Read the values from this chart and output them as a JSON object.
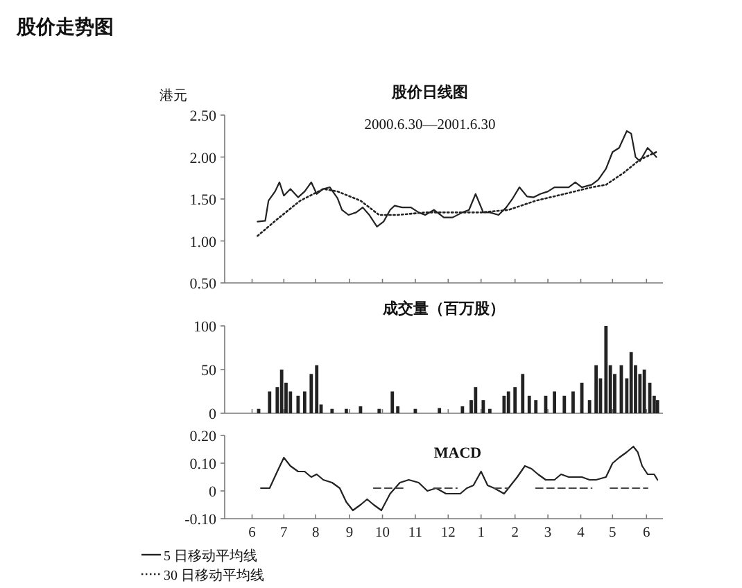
{
  "chart_data": [
    {
      "type": "line",
      "title": "股价日线图",
      "subtitle": "2000.6.30—2001.6.30",
      "ylabel": "港元",
      "annotations": [
        "股价走势图"
      ],
      "legend": "bottom left",
      "tick_labels": "y",
      "xlim": [
        "2000-05-31",
        "2001-07-05"
      ],
      "ylim": [
        0.5,
        2.5
      ],
      "xticks": [
        {
          "value": "2000-06-25",
          "label": null
        },
        {
          "value": "2000-07-24",
          "label": null
        },
        {
          "value": "2000-08-22",
          "label": null
        },
        {
          "value": "2000-09-22",
          "label": null
        },
        {
          "value": "2000-10-22",
          "label": null
        },
        {
          "value": "2000-11-21",
          "label": null
        },
        {
          "value": "2000-12-21",
          "label": null
        },
        {
          "value": "2001-01-20",
          "label": null
        },
        {
          "value": "2001-02-20",
          "label": null
        },
        {
          "value": "2001-03-22",
          "label": null
        },
        {
          "value": "2001-04-21",
          "label": null
        },
        {
          "value": "2001-05-20",
          "label": null
        },
        {
          "value": "2001-06-20",
          "label": null
        }
      ],
      "yticks": [
        {
          "value": 0.5,
          "label": "0.50"
        },
        {
          "value": 1.0,
          "label": "1.00"
        },
        {
          "value": 1.5,
          "label": "1.50"
        },
        {
          "value": 2.0,
          "label": "2.00"
        },
        {
          "value": 2.5,
          "label": "2.50"
        }
      ],
      "series": [
        {
          "name": "5 日移动平均线",
          "color": "#222222",
          "line_style": "solid",
          "x": [
            "2000-06-30",
            "2000-07-07",
            "2000-07-10",
            "2000-07-16",
            "2000-07-20",
            "2000-07-24",
            "2000-07-30",
            "2000-08-06",
            "2000-08-12",
            "2000-08-18",
            "2000-08-23",
            "2000-08-29",
            "2000-09-04",
            "2000-09-11",
            "2000-09-15",
            "2000-09-21",
            "2000-09-28",
            "2000-10-04",
            "2000-10-10",
            "2000-10-17",
            "2000-10-23",
            "2000-10-29",
            "2000-11-02",
            "2000-11-09",
            "2000-11-17",
            "2000-11-24",
            "2000-11-30",
            "2000-12-08",
            "2000-12-17",
            "2000-12-25",
            "2001-01-03",
            "2001-01-09",
            "2001-01-15",
            "2001-01-22",
            "2001-01-28",
            "2001-02-05",
            "2001-02-12",
            "2001-02-18",
            "2001-02-24",
            "2001-03-03",
            "2001-03-09",
            "2001-03-15",
            "2001-03-22",
            "2001-03-28",
            "2001-04-03",
            "2001-04-10",
            "2001-04-16",
            "2001-04-22",
            "2001-05-01",
            "2001-05-07",
            "2001-05-14",
            "2001-05-20",
            "2001-05-26",
            "2001-06-02",
            "2001-06-06",
            "2001-06-10",
            "2001-06-14",
            "2001-06-21",
            "2001-06-27",
            "2001-06-29"
          ],
          "values": [
            1.23,
            1.24,
            1.48,
            1.59,
            1.7,
            1.54,
            1.62,
            1.52,
            1.59,
            1.7,
            1.56,
            1.62,
            1.64,
            1.51,
            1.37,
            1.31,
            1.34,
            1.4,
            1.31,
            1.17,
            1.23,
            1.37,
            1.42,
            1.4,
            1.4,
            1.34,
            1.31,
            1.37,
            1.28,
            1.28,
            1.34,
            1.37,
            1.56,
            1.34,
            1.34,
            1.31,
            1.4,
            1.51,
            1.64,
            1.53,
            1.52,
            1.56,
            1.59,
            1.64,
            1.64,
            1.64,
            1.7,
            1.64,
            1.67,
            1.73,
            1.86,
            2.06,
            2.11,
            2.31,
            2.28,
            2.0,
            1.95,
            2.11,
            2.03,
            2.0
          ]
        },
        {
          "name": "30 日移动平均线",
          "color": "#222222",
          "line_style": "dotted",
          "x": [
            "2000-06-30",
            "2000-07-18",
            "2000-08-08",
            "2000-08-29",
            "2000-09-11",
            "2000-10-02",
            "2000-10-19",
            "2000-11-05",
            "2000-11-30",
            "2000-12-25",
            "2001-01-20",
            "2001-02-14",
            "2001-03-11",
            "2001-04-06",
            "2001-05-01",
            "2001-05-14",
            "2001-05-30",
            "2001-06-14",
            "2001-06-29"
          ],
          "values": [
            1.06,
            1.26,
            1.48,
            1.62,
            1.59,
            1.48,
            1.31,
            1.31,
            1.34,
            1.34,
            1.34,
            1.37,
            1.48,
            1.56,
            1.64,
            1.67,
            1.81,
            1.97,
            2.06
          ]
        }
      ]
    },
    {
      "type": "bar",
      "title": "成交量（百万股）",
      "tick_labels": "y",
      "xlim": [
        "2000-05-31",
        "2001-07-05"
      ],
      "ylim": [
        0,
        100
      ],
      "yticks": [
        0,
        50,
        100
      ],
      "xticks": [
        {
          "value": "2000-06-25",
          "label": null
        },
        {
          "value": "2000-07-24",
          "label": null
        },
        {
          "value": "2000-08-22",
          "label": null
        },
        {
          "value": "2000-09-22",
          "label": null
        },
        {
          "value": "2000-10-22",
          "label": null
        },
        {
          "value": "2000-11-21",
          "label": null
        },
        {
          "value": "2000-12-21",
          "label": null
        },
        {
          "value": "2001-01-20",
          "label": null
        },
        {
          "value": "2001-02-20",
          "label": null
        },
        {
          "value": "2001-03-22",
          "label": null
        },
        {
          "value": "2001-04-21",
          "label": null
        },
        {
          "value": "2001-05-20",
          "label": null
        },
        {
          "value": "2001-06-20",
          "label": null
        }
      ],
      "series": [
        {
          "color": "#222222",
          "x": [
            "2000-07-01",
            "2000-07-11",
            "2000-07-18",
            "2000-07-22",
            "2000-07-26",
            "2000-07-30",
            "2000-08-06",
            "2000-08-12",
            "2000-08-18",
            "2000-08-23",
            "2000-08-27",
            "2000-09-06",
            "2000-09-19",
            "2000-10-02",
            "2000-10-19",
            "2000-10-31",
            "2000-11-05",
            "2000-11-21",
            "2000-12-13",
            "2001-01-03",
            "2001-01-11",
            "2001-01-15",
            "2001-01-22",
            "2001-01-28",
            "2001-02-10",
            "2001-02-14",
            "2001-02-20",
            "2001-02-27",
            "2001-03-05",
            "2001-03-11",
            "2001-03-20",
            "2001-03-28",
            "2001-04-06",
            "2001-04-14",
            "2001-04-22",
            "2001-04-29",
            "2001-05-05",
            "2001-05-09",
            "2001-05-14",
            "2001-05-18",
            "2001-05-22",
            "2001-05-28",
            "2001-06-02",
            "2001-06-06",
            "2001-06-10",
            "2001-06-14",
            "2001-06-18",
            "2001-06-23",
            "2001-06-27",
            "2001-06-30"
          ],
          "values": [
            5,
            25,
            30,
            50,
            35,
            25,
            20,
            25,
            45,
            55,
            10,
            5,
            5,
            8,
            5,
            25,
            8,
            5,
            6,
            8,
            15,
            30,
            15,
            5,
            20,
            25,
            30,
            45,
            20,
            15,
            20,
            25,
            20,
            25,
            35,
            15,
            55,
            40,
            100,
            55,
            45,
            55,
            40,
            70,
            55,
            45,
            50,
            35,
            20,
            15
          ]
        }
      ]
    },
    {
      "type": "line",
      "title": "MACD",
      "xlim": [
        "2000-05-31",
        "2001-07-05"
      ],
      "ylim": [
        -0.1,
        0.2
      ],
      "yticks": [
        {
          "value": -0.1,
          "label": "-0.10"
        },
        0,
        {
          "value": 0.1,
          "label": "0.10"
        },
        {
          "value": 0.2,
          "label": "0.20"
        }
      ],
      "xticks": [
        {
          "value": "2000-06-25",
          "label": "6"
        },
        {
          "value": "2000-07-24",
          "label": "7"
        },
        {
          "value": "2000-08-22",
          "label": "8"
        },
        {
          "value": "2000-09-22",
          "label": "9"
        },
        {
          "value": "2000-10-22",
          "label": "10"
        },
        {
          "value": "2000-11-21",
          "label": "11"
        },
        {
          "value": "2000-12-21",
          "label": "12"
        },
        {
          "value": "2001-01-20",
          "label": "1"
        },
        {
          "value": "2001-02-20",
          "label": "2"
        },
        {
          "value": "2001-03-22",
          "label": "3"
        },
        {
          "value": "2001-04-21",
          "label": "4"
        },
        {
          "value": "2001-05-20",
          "label": "5"
        },
        {
          "value": "2001-06-20",
          "label": "6"
        }
      ],
      "series": [
        {
          "color": "#222222",
          "line_style": "solid",
          "x": [
            "2000-07-03",
            "2000-07-11",
            "2000-07-18",
            "2000-07-24",
            "2000-07-30",
            "2000-08-06",
            "2000-08-12",
            "2000-08-18",
            "2000-08-23",
            "2000-08-29",
            "2000-09-06",
            "2000-09-13",
            "2000-09-19",
            "2000-09-25",
            "2000-10-02",
            "2000-10-08",
            "2000-10-14",
            "2000-10-21",
            "2000-10-29",
            "2000-11-07",
            "2000-11-15",
            "2000-11-24",
            "2000-12-02",
            "2000-12-10",
            "2000-12-19",
            "2000-12-25",
            "2001-01-01",
            "2001-01-07",
            "2001-01-13",
            "2001-01-20",
            "2001-01-26",
            "2001-02-01",
            "2001-02-10",
            "2001-02-16",
            "2001-02-22",
            "2001-03-01",
            "2001-03-07",
            "2001-03-13",
            "2001-03-20",
            "2001-03-28",
            "2001-04-03",
            "2001-04-10",
            "2001-04-18",
            "2001-04-22",
            "2001-04-29",
            "2001-05-05",
            "2001-05-14",
            "2001-05-20",
            "2001-05-26",
            "2001-06-02",
            "2001-06-08",
            "2001-06-12",
            "2001-06-16",
            "2001-06-21",
            "2001-06-27",
            "2001-06-30"
          ],
          "values": [
            0.01,
            0.01,
            0.07,
            0.12,
            0.09,
            0.07,
            0.07,
            0.05,
            0.06,
            0.04,
            0.03,
            0.01,
            -0.04,
            -0.07,
            -0.05,
            -0.03,
            -0.05,
            -0.07,
            -0.01,
            0.03,
            0.04,
            0.03,
            0.0,
            0.01,
            -0.01,
            -0.01,
            -0.01,
            0.01,
            0.02,
            0.07,
            0.02,
            0.01,
            -0.01,
            0.02,
            0.05,
            0.09,
            0.08,
            0.06,
            0.04,
            0.04,
            0.06,
            0.05,
            0.05,
            0.05,
            0.04,
            0.04,
            0.05,
            0.1,
            0.12,
            0.14,
            0.16,
            0.14,
            0.09,
            0.06,
            0.06,
            0.04
          ]
        },
        {
          "color": "#444444",
          "line_style": "dashed",
          "x": [
            "2000-10-14",
            "2000-11-13"
          ],
          "values": [
            0.01,
            0.01
          ]
        },
        {
          "color": "#444444",
          "line_style": "dashed",
          "x": [
            "2000-12-08",
            "2000-12-29"
          ],
          "values": [
            0.01,
            0.01
          ]
        },
        {
          "color": "#444444",
          "line_style": "dashed",
          "x": [
            "2001-02-01",
            "2001-02-14"
          ],
          "values": [
            0.01,
            0.01
          ]
        },
        {
          "color": "#444444",
          "line_style": "dashed",
          "x": [
            "2001-03-11",
            "2001-05-01"
          ],
          "values": [
            0.01,
            0.01
          ]
        },
        {
          "color": "#444444",
          "line_style": "dashed",
          "x": [
            "2001-05-18",
            "2001-06-21"
          ],
          "values": [
            0.01,
            0.01
          ]
        }
      ]
    }
  ]
}
